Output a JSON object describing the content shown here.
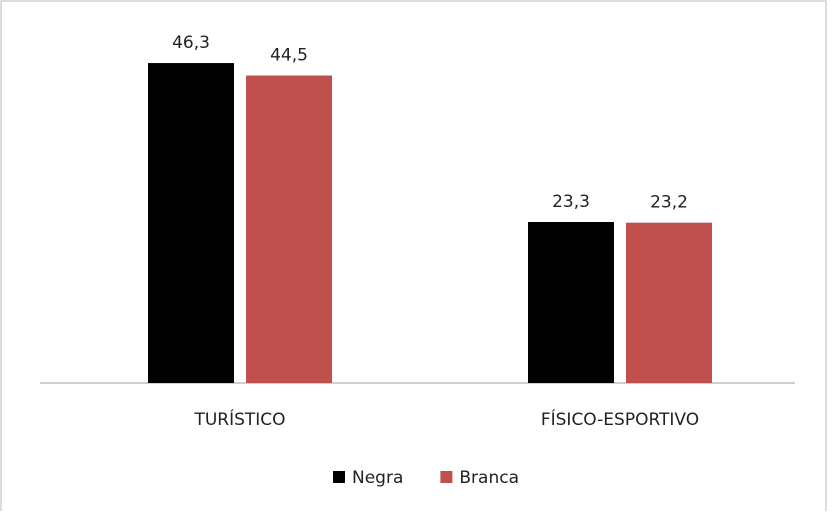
{
  "chart_data": {
    "type": "bar",
    "categories": [
      "TURÍSTICO",
      "FÍSICO-ESPORTIVO"
    ],
    "series": [
      {
        "name": "Negra",
        "color": "#000000",
        "values": [
          46.3,
          23.3
        ],
        "value_labels": [
          "46,3",
          "23,3"
        ]
      },
      {
        "name": "Branca",
        "color": "#c0504d",
        "values": [
          44.5,
          23.2
        ],
        "value_labels": [
          "44,5",
          "23,2"
        ]
      }
    ],
    "ylim": [
      0,
      50
    ]
  }
}
